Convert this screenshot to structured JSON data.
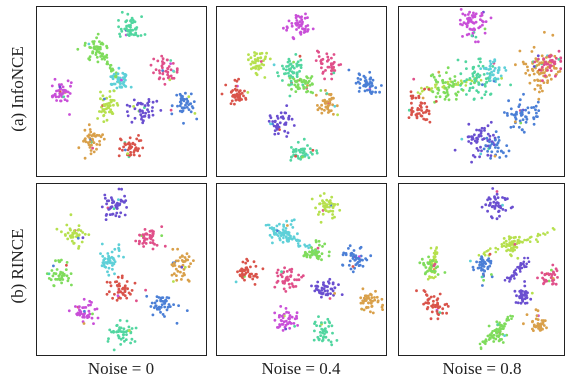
{
  "chart_data": {
    "type": "scatter",
    "description_grid": "2 rows x 3 columns of t-SNE style embedding scatter plots",
    "row_labels": [
      "(a) InfoNCE",
      "(b) RINCE"
    ],
    "col_labels": [
      "Noise = 0",
      "Noise = 0.4",
      "Noise = 0.8"
    ],
    "axes": "none",
    "grid": false,
    "colors": {
      "magenta": "#c94fd8",
      "green": "#7fdc5c",
      "teal": "#52d6a0",
      "cyan": "#5ed0d8",
      "red": "#d9534a",
      "orange": "#d9a04a",
      "blue": "#4b7fd6",
      "purple": "#6a4fd0",
      "pink": "#e0508a",
      "lime": "#b6e04e"
    },
    "panels": [
      {
        "row": "(a) InfoNCE",
        "col": "Noise = 0",
        "clusters": [
          {
            "color": "teal",
            "x": 0.55,
            "y": 0.87,
            "spread": 0.035,
            "n": 50
          },
          {
            "color": "green",
            "x": 0.36,
            "y": 0.75,
            "spread": 0.035,
            "n": 45
          },
          {
            "color": "cyan",
            "x": 0.49,
            "y": 0.56,
            "spread": 0.035,
            "n": 45
          },
          {
            "color": "pink",
            "x": 0.76,
            "y": 0.62,
            "spread": 0.035,
            "n": 45
          },
          {
            "color": "magenta",
            "x": 0.15,
            "y": 0.49,
            "spread": 0.035,
            "n": 45
          },
          {
            "color": "lime",
            "x": 0.42,
            "y": 0.41,
            "spread": 0.035,
            "n": 45
          },
          {
            "color": "purple",
            "x": 0.63,
            "y": 0.4,
            "spread": 0.035,
            "n": 45
          },
          {
            "color": "blue",
            "x": 0.88,
            "y": 0.42,
            "spread": 0.035,
            "n": 45
          },
          {
            "color": "orange",
            "x": 0.33,
            "y": 0.21,
            "spread": 0.035,
            "n": 45
          },
          {
            "color": "red",
            "x": 0.55,
            "y": 0.16,
            "spread": 0.035,
            "n": 45
          }
        ],
        "bridges": [
          {
            "from": [
              0.36,
              0.75
            ],
            "to": [
              0.49,
              0.56
            ],
            "color": "green"
          }
        ]
      },
      {
        "row": "(a) InfoNCE",
        "col": "Noise = 0.4",
        "clusters": [
          {
            "color": "magenta",
            "x": 0.48,
            "y": 0.88,
            "spread": 0.035,
            "n": 50
          },
          {
            "color": "lime",
            "x": 0.25,
            "y": 0.67,
            "spread": 0.035,
            "n": 40
          },
          {
            "color": "teal",
            "x": 0.45,
            "y": 0.62,
            "spread": 0.045,
            "n": 55
          },
          {
            "color": "green",
            "x": 0.52,
            "y": 0.55,
            "spread": 0.035,
            "n": 40
          },
          {
            "color": "pink",
            "x": 0.67,
            "y": 0.66,
            "spread": 0.035,
            "n": 40
          },
          {
            "color": "blue",
            "x": 0.9,
            "y": 0.55,
            "spread": 0.035,
            "n": 45
          },
          {
            "color": "red",
            "x": 0.13,
            "y": 0.48,
            "spread": 0.035,
            "n": 45
          },
          {
            "color": "orange",
            "x": 0.65,
            "y": 0.43,
            "spread": 0.035,
            "n": 45
          },
          {
            "color": "purple",
            "x": 0.38,
            "y": 0.31,
            "spread": 0.035,
            "n": 45
          },
          {
            "color": "teal",
            "x": 0.51,
            "y": 0.15,
            "spread": 0.035,
            "n": 45
          }
        ],
        "bridges": []
      },
      {
        "row": "(a) InfoNCE",
        "col": "Noise = 0.8",
        "clusters": [
          {
            "color": "magenta",
            "x": 0.46,
            "y": 0.89,
            "spread": 0.04,
            "n": 60
          },
          {
            "color": "orange",
            "x": 0.86,
            "y": 0.63,
            "spread": 0.06,
            "n": 80
          },
          {
            "color": "pink",
            "x": 0.92,
            "y": 0.66,
            "spread": 0.04,
            "n": 40
          },
          {
            "color": "teal",
            "x": 0.48,
            "y": 0.57,
            "spread": 0.06,
            "n": 70
          },
          {
            "color": "cyan",
            "x": 0.58,
            "y": 0.62,
            "spread": 0.04,
            "n": 35
          },
          {
            "color": "green",
            "x": 0.3,
            "y": 0.52,
            "spread": 0.05,
            "n": 50
          },
          {
            "color": "red",
            "x": 0.12,
            "y": 0.4,
            "spread": 0.045,
            "n": 50
          },
          {
            "color": "blue",
            "x": 0.76,
            "y": 0.36,
            "spread": 0.05,
            "n": 55
          },
          {
            "color": "purple",
            "x": 0.5,
            "y": 0.2,
            "spread": 0.05,
            "n": 55
          },
          {
            "color": "blue",
            "x": 0.58,
            "y": 0.17,
            "spread": 0.04,
            "n": 30
          }
        ],
        "bridges": [
          {
            "from": [
              0.12,
              0.5
            ],
            "to": [
              0.48,
              0.57
            ],
            "color": "lime"
          }
        ]
      },
      {
        "row": "(b) RINCE",
        "col": "Noise = 0",
        "clusters": [
          {
            "color": "purple",
            "x": 0.46,
            "y": 0.87,
            "spread": 0.035,
            "n": 50
          },
          {
            "color": "lime",
            "x": 0.22,
            "y": 0.7,
            "spread": 0.035,
            "n": 45
          },
          {
            "color": "pink",
            "x": 0.66,
            "y": 0.68,
            "spread": 0.035,
            "n": 45
          },
          {
            "color": "cyan",
            "x": 0.44,
            "y": 0.56,
            "spread": 0.035,
            "n": 45
          },
          {
            "color": "orange",
            "x": 0.86,
            "y": 0.51,
            "spread": 0.035,
            "n": 45
          },
          {
            "color": "green",
            "x": 0.14,
            "y": 0.47,
            "spread": 0.035,
            "n": 45
          },
          {
            "color": "red",
            "x": 0.5,
            "y": 0.37,
            "spread": 0.035,
            "n": 45
          },
          {
            "color": "magenta",
            "x": 0.28,
            "y": 0.25,
            "spread": 0.035,
            "n": 45
          },
          {
            "color": "blue",
            "x": 0.74,
            "y": 0.29,
            "spread": 0.035,
            "n": 45
          },
          {
            "color": "teal",
            "x": 0.52,
            "y": 0.12,
            "spread": 0.035,
            "n": 45
          }
        ],
        "bridges": []
      },
      {
        "row": "(b) RINCE",
        "col": "Noise = 0.4",
        "clusters": [
          {
            "color": "lime",
            "x": 0.65,
            "y": 0.86,
            "spread": 0.035,
            "n": 45
          },
          {
            "color": "cyan",
            "x": 0.4,
            "y": 0.71,
            "spread": 0.04,
            "n": 50
          },
          {
            "color": "green",
            "x": 0.58,
            "y": 0.6,
            "spread": 0.035,
            "n": 40
          },
          {
            "color": "blue",
            "x": 0.82,
            "y": 0.56,
            "spread": 0.035,
            "n": 45
          },
          {
            "color": "red",
            "x": 0.19,
            "y": 0.48,
            "spread": 0.035,
            "n": 45
          },
          {
            "color": "pink",
            "x": 0.42,
            "y": 0.44,
            "spread": 0.035,
            "n": 45
          },
          {
            "color": "purple",
            "x": 0.64,
            "y": 0.38,
            "spread": 0.035,
            "n": 45
          },
          {
            "color": "orange",
            "x": 0.91,
            "y": 0.32,
            "spread": 0.035,
            "n": 45
          },
          {
            "color": "magenta",
            "x": 0.41,
            "y": 0.2,
            "spread": 0.035,
            "n": 45
          },
          {
            "color": "teal",
            "x": 0.63,
            "y": 0.14,
            "spread": 0.035,
            "n": 45
          }
        ],
        "bridges": [
          {
            "from": [
              0.3,
              0.75
            ],
            "to": [
              0.58,
              0.6
            ],
            "color": "cyan"
          }
        ]
      },
      {
        "row": "(b) RINCE",
        "col": "Noise = 0.8",
        "clusters": [
          {
            "color": "purple",
            "x": 0.59,
            "y": 0.87,
            "spread": 0.035,
            "n": 45
          },
          {
            "color": "lime",
            "x": 0.69,
            "y": 0.64,
            "spread": 0.03,
            "n": 40
          },
          {
            "color": "blue",
            "x": 0.52,
            "y": 0.52,
            "spread": 0.035,
            "n": 45
          },
          {
            "color": "pink",
            "x": 0.92,
            "y": 0.46,
            "spread": 0.03,
            "n": 35
          },
          {
            "color": "green",
            "x": 0.2,
            "y": 0.52,
            "spread": 0.03,
            "n": 35
          },
          {
            "color": "red",
            "x": 0.23,
            "y": 0.3,
            "spread": 0.035,
            "n": 45
          },
          {
            "color": "purple",
            "x": 0.76,
            "y": 0.35,
            "spread": 0.03,
            "n": 35
          },
          {
            "color": "orange",
            "x": 0.85,
            "y": 0.18,
            "spread": 0.035,
            "n": 40
          },
          {
            "color": "green",
            "x": 0.6,
            "y": 0.13,
            "spread": 0.03,
            "n": 35
          }
        ],
        "bridges": [
          {
            "from": [
              0.5,
              0.58
            ],
            "to": [
              0.92,
              0.72
            ],
            "color": "lime"
          },
          {
            "from": [
              0.22,
              0.62
            ],
            "to": [
              0.2,
              0.44
            ],
            "color": "lime"
          },
          {
            "from": [
              0.66,
              0.43
            ],
            "to": [
              0.78,
              0.55
            ],
            "color": "purple"
          },
          {
            "from": [
              0.5,
              0.05
            ],
            "to": [
              0.68,
              0.22
            ],
            "color": "green"
          }
        ]
      }
    ]
  }
}
